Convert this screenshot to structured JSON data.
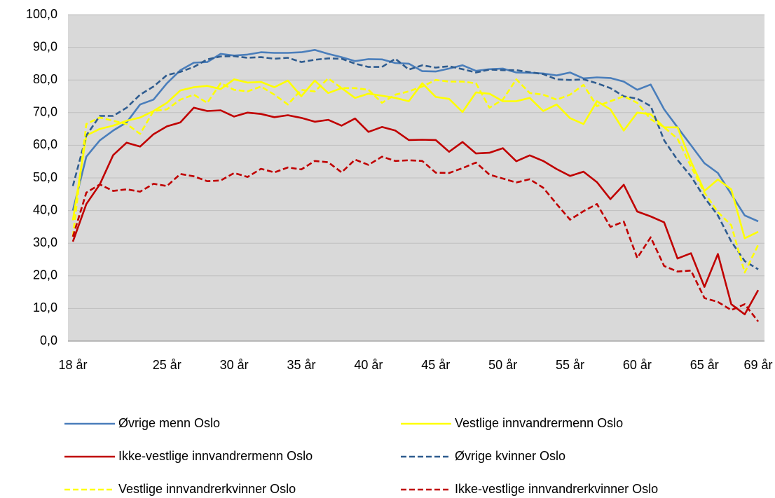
{
  "chart_data": {
    "type": "line",
    "categories": [
      "18 år",
      null,
      null,
      null,
      null,
      null,
      null,
      "25 år",
      null,
      null,
      null,
      null,
      "30 år",
      null,
      null,
      null,
      null,
      "35 år",
      null,
      null,
      null,
      null,
      "40 år",
      null,
      null,
      null,
      null,
      "45 år",
      null,
      null,
      null,
      null,
      "50 år",
      null,
      null,
      null,
      null,
      "55 år",
      null,
      null,
      null,
      null,
      "60 år",
      null,
      null,
      null,
      null,
      "65 år",
      null,
      null,
      null,
      "69 år"
    ],
    "series": [
      {
        "name": "Øvrige menn Oslo",
        "color": "#4a7ebb",
        "dashed": false,
        "values": [
          40,
          56.5,
          61.5,
          64.5,
          67,
          72.5,
          74,
          79,
          83,
          85.3,
          85.5,
          88,
          87.5,
          87.8,
          88.5,
          88.3,
          88.3,
          88.5,
          89.2,
          88,
          87,
          85.8,
          86.4,
          86.3,
          85.2,
          85,
          82.7,
          82.6,
          83.5,
          84.5,
          82.8,
          83.3,
          83.5,
          82.3,
          82.2,
          82,
          81.4,
          82.3,
          80.5,
          80.8,
          80.6,
          79.5,
          77,
          78.6,
          71,
          65.5,
          60,
          54.5,
          51.5,
          45,
          38.5,
          36.7
        ]
      },
      {
        "name": "Vestlige innvandrermenn Oslo",
        "color": "#ffff00",
        "dashed": false,
        "values": [
          37,
          63,
          65,
          66,
          67.5,
          68.5,
          70.5,
          73,
          76.8,
          77.8,
          78.2,
          77.2,
          80.2,
          79.2,
          79.4,
          77.8,
          79.8,
          75,
          79.8,
          76,
          77.5,
          74.5,
          75.8,
          75.2,
          74.5,
          73.5,
          79,
          74.8,
          74.2,
          70.2,
          76.2,
          75.8,
          73.5,
          73.5,
          74.5,
          70.5,
          72.5,
          68.3,
          66.5,
          73.5,
          71,
          64.5,
          70,
          69.5,
          65.5,
          65.5,
          55,
          46,
          49.5,
          46.5,
          31.5,
          33.5
        ]
      },
      {
        "name": "Ikke-vestlige innvandrermenn Oslo",
        "color": "#c00000",
        "dashed": false,
        "values": [
          30.5,
          42,
          48,
          57,
          60.8,
          59.6,
          63.4,
          65.8,
          67,
          71.5,
          70.5,
          70.7,
          68.8,
          70,
          69.6,
          68.6,
          69.2,
          68.4,
          67.2,
          67.8,
          66,
          68.2,
          64.1,
          65.6,
          64.5,
          61.6,
          61.7,
          61.6,
          58,
          61,
          57.5,
          57.7,
          59.1,
          55.1,
          56.9,
          55.2,
          52.7,
          50.6,
          51.9,
          48.7,
          43.5,
          47.9,
          39.7,
          38.2,
          36.4,
          25.3,
          26.9,
          16.6,
          26.7,
          11.3,
          8.2,
          15.6
        ]
      },
      {
        "name": "Øvrige kvinner Oslo",
        "color": "#2f5c8f",
        "dashed": true,
        "values": [
          47.5,
          63,
          69,
          69,
          71.5,
          75.5,
          78,
          81.5,
          82.5,
          84,
          86.3,
          87.2,
          87.3,
          86.8,
          87,
          86.5,
          86.8,
          85.5,
          86.2,
          86.6,
          86.5,
          85,
          84,
          84,
          86.5,
          83.2,
          84.5,
          83.8,
          84.2,
          83.3,
          82.3,
          83.2,
          83,
          83,
          82.4,
          81.8,
          80.2,
          80,
          80.2,
          79,
          77.5,
          75,
          74.3,
          72,
          61.5,
          55.5,
          50.5,
          44,
          38.5,
          30.5,
          24.5,
          22
        ]
      },
      {
        "name": "Vestlige innvandrerkvinner Oslo",
        "color": "#ffff00",
        "dashed": true,
        "values": [
          32,
          66.5,
          68.5,
          67.5,
          66.5,
          63.5,
          70.5,
          71,
          74,
          75.5,
          73,
          79,
          77,
          76.5,
          78,
          75.5,
          72.5,
          77,
          76.5,
          80.5,
          77.5,
          77.5,
          77,
          73,
          75.5,
          76.5,
          78,
          80,
          79.5,
          79.5,
          79,
          71.5,
          74,
          80.2,
          76,
          75.5,
          74,
          75.5,
          78.5,
          72,
          73.5,
          75,
          73,
          68,
          65.5,
          62,
          53.5,
          45.5,
          39.5,
          35.5,
          21,
          29.5
        ]
      },
      {
        "name": "Ikke-vestlige innvandrerkvinner Oslo",
        "color": "#c00000",
        "dashed": true,
        "values": [
          32,
          45.5,
          48,
          46,
          46.5,
          45.8,
          48.2,
          47.5,
          51.2,
          50.5,
          49,
          49.2,
          51.5,
          50.3,
          52.8,
          51.7,
          53.2,
          52.6,
          55.2,
          54.8,
          51.7,
          55.6,
          54,
          56.5,
          55.2,
          55.4,
          55.2,
          51.6,
          51.5,
          53,
          54.7,
          51,
          49.8,
          48.6,
          49.6,
          47,
          42,
          37.2,
          39.8,
          42,
          35,
          36.6,
          25.5,
          31.8,
          23,
          21.3,
          21.6,
          13.2,
          12,
          9.5,
          11.3,
          6
        ]
      }
    ],
    "ylim": [
      0,
      100
    ],
    "yticks": [
      {
        "value": 0,
        "label": "0,0"
      },
      {
        "value": 10,
        "label": "10,0"
      },
      {
        "value": 20,
        "label": "20,0"
      },
      {
        "value": 30,
        "label": "30,0"
      },
      {
        "value": 40,
        "label": "40,0"
      },
      {
        "value": 50,
        "label": "50,0"
      },
      {
        "value": 60,
        "label": "60,0"
      },
      {
        "value": 70,
        "label": "70,0"
      },
      {
        "value": 80,
        "label": "80,0"
      },
      {
        "value": 90,
        "label": "90,0"
      },
      {
        "value": 100,
        "label": "100,0"
      }
    ],
    "grid": true,
    "legend": "bottom"
  }
}
